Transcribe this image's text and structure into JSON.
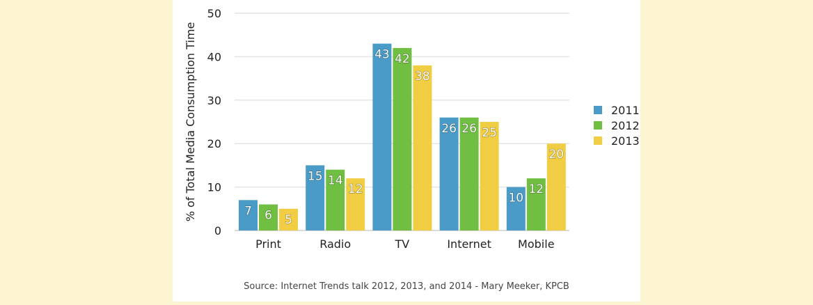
{
  "chart_data": {
    "type": "bar",
    "categories": [
      "Print",
      "Radio",
      "TV",
      "Internet",
      "Mobile"
    ],
    "series": [
      {
        "name": "2011",
        "values": [
          7,
          15,
          43,
          26,
          10
        ],
        "color": "#4a9bc8"
      },
      {
        "name": "2012",
        "values": [
          6,
          14,
          42,
          26,
          12
        ],
        "color": "#70bf43"
      },
      {
        "name": "2013",
        "values": [
          5,
          12,
          38,
          25,
          20
        ],
        "color": "#f1cd43"
      }
    ],
    "ylabel": "% of Total Media Consumption Time",
    "xlabel": "",
    "ylim": [
      0,
      50
    ],
    "yticks": [
      0,
      10,
      20,
      30,
      40,
      50
    ],
    "grid": true,
    "legend": "right",
    "data_labels": true
  },
  "source": "Source: Internet Trends talk 2012, 2013, and 2014 - Mary Meeker, KPCB"
}
